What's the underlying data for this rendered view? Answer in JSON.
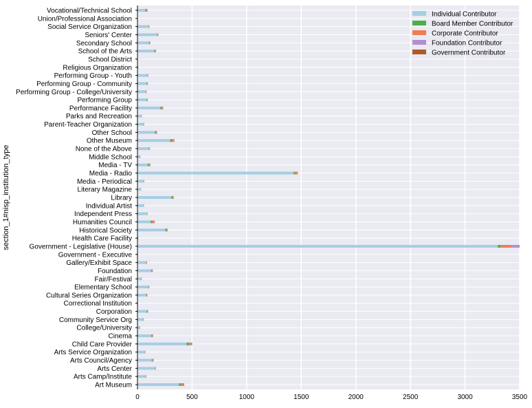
{
  "chart_data": {
    "type": "bar",
    "orientation": "horizontal",
    "stacked": true,
    "title": "",
    "xlabel": "",
    "ylabel": "section_1#nisp_institution_type",
    "xlim": [
      0,
      3500
    ],
    "xticks": [
      0,
      500,
      1000,
      1500,
      2000,
      2500,
      3000,
      3500
    ],
    "grid": true,
    "legend_position": "top-right",
    "colors": {
      "background": "#eaeaf2",
      "grid": "#ffffff",
      "axis": "#000000",
      "series": [
        "#a6cee3",
        "#4daf4a",
        "#f07c56",
        "#b48fd0",
        "#b05a2a"
      ]
    },
    "categories": [
      "Art Museum",
      "Arts Camp/Institute",
      "Arts Center",
      "Arts Council/Agency",
      "Arts Service Organization",
      "Child Care Provider",
      "Cinema",
      "College/University",
      "Community Service Org",
      "Corporation",
      "Correctional Institution",
      "Cultural Series Organization",
      "Elementary School",
      "Fair/Festival",
      "Foundation",
      "Gallery/Exhibit Space",
      "Government - Executive",
      "Government - Legislative (House)",
      "Health Care Facility",
      "Historical Society",
      "Humanities Council",
      "Independent Press",
      "Individual Artist",
      "Library",
      "Literary Magazine",
      "Media - Periodical",
      "Media - Radio",
      "Media - TV",
      "Middle School",
      "None of the Above",
      "Other Museum",
      "Other School",
      "Parent-Teacher Organization",
      "Parks and Recreation",
      "Performance Facility",
      "Performing Group",
      "Performing Group - College/University",
      "Performing Group - Community",
      "Performing Group - Youth",
      "Religious Organization",
      "School District",
      "School of the Arts",
      "Secondary School",
      "Seniors' Center",
      "Social Service Organization",
      "Union/Professional Association",
      "Vocational/Technical School"
    ],
    "series": [
      {
        "name": "Individual Contributor",
        "values": [
          380,
          75,
          160,
          130,
          65,
          450,
          125,
          20,
          50,
          85,
          5,
          80,
          100,
          35,
          125,
          80,
          5,
          3300,
          10,
          255,
          120,
          85,
          55,
          310,
          30,
          55,
          1430,
          95,
          20,
          105,
          300,
          160,
          55,
          35,
          210,
          85,
          75,
          85,
          90,
          10,
          5,
          155,
          105,
          180,
          100,
          3,
          70
        ]
      },
      {
        "name": "Board Member Contributor",
        "values": [
          15,
          2,
          3,
          5,
          2,
          20,
          5,
          2,
          2,
          5,
          0,
          5,
          3,
          2,
          5,
          3,
          0,
          25,
          0,
          12,
          10,
          2,
          2,
          12,
          1,
          2,
          10,
          10,
          2,
          3,
          15,
          10,
          2,
          2,
          10,
          3,
          3,
          5,
          3,
          0,
          0,
          5,
          5,
          5,
          3,
          0,
          5
        ]
      },
      {
        "name": "Corporate Contributor",
        "values": [
          25,
          3,
          3,
          8,
          3,
          15,
          8,
          2,
          3,
          5,
          0,
          3,
          3,
          2,
          5,
          3,
          0,
          100,
          0,
          5,
          20,
          3,
          2,
          5,
          2,
          2,
          20,
          8,
          3,
          3,
          15,
          5,
          2,
          2,
          10,
          3,
          3,
          3,
          3,
          0,
          0,
          5,
          5,
          3,
          3,
          0,
          10
        ]
      },
      {
        "name": "Foundation Contributor",
        "values": [
          5,
          1,
          2,
          3,
          1,
          10,
          3,
          1,
          1,
          2,
          0,
          1,
          2,
          1,
          3,
          1,
          0,
          75,
          0,
          3,
          5,
          1,
          1,
          3,
          1,
          1,
          5,
          3,
          1,
          2,
          5,
          3,
          1,
          1,
          3,
          1,
          1,
          2,
          2,
          0,
          0,
          3,
          2,
          2,
          2,
          0,
          5
        ]
      },
      {
        "name": "Government Contributor",
        "values": [
          3,
          1,
          1,
          2,
          1,
          5,
          2,
          0,
          1,
          1,
          0,
          1,
          1,
          0,
          2,
          1,
          0,
          5,
          0,
          2,
          3,
          1,
          0,
          2,
          0,
          1,
          3,
          2,
          0,
          1,
          3,
          2,
          1,
          0,
          2,
          1,
          1,
          1,
          1,
          0,
          0,
          2,
          1,
          1,
          1,
          0,
          2
        ]
      }
    ]
  }
}
